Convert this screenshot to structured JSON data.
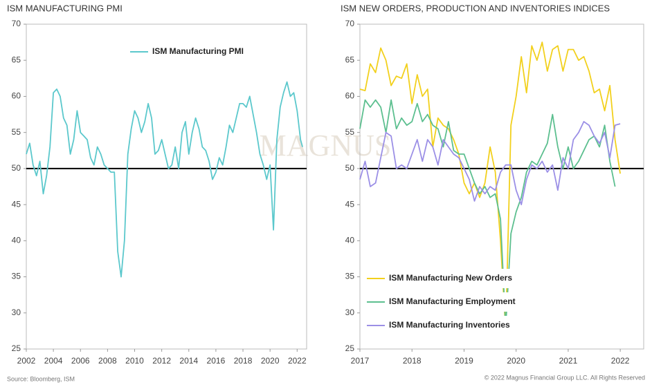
{
  "chart_data": [
    {
      "type": "line",
      "title": "ISM MANUFACTURING PMI",
      "legend": "top",
      "x": [
        2002.0,
        2002.25,
        2002.5,
        2002.75,
        2003.0,
        2003.25,
        2003.5,
        2003.75,
        2004.0,
        2004.25,
        2004.5,
        2004.75,
        2005.0,
        2005.25,
        2005.5,
        2005.75,
        2006.0,
        2006.25,
        2006.5,
        2006.75,
        2007.0,
        2007.25,
        2007.5,
        2007.75,
        2008.0,
        2008.25,
        2008.5,
        2008.75,
        2009.0,
        2009.25,
        2009.5,
        2009.75,
        2010.0,
        2010.25,
        2010.5,
        2010.75,
        2011.0,
        2011.25,
        2011.5,
        2011.75,
        2012.0,
        2012.25,
        2012.5,
        2012.75,
        2013.0,
        2013.25,
        2013.5,
        2013.75,
        2014.0,
        2014.25,
        2014.5,
        2014.75,
        2015.0,
        2015.25,
        2015.5,
        2015.75,
        2016.0,
        2016.25,
        2016.5,
        2016.75,
        2017.0,
        2017.25,
        2017.5,
        2017.75,
        2018.0,
        2018.25,
        2018.5,
        2018.75,
        2019.0,
        2019.25,
        2019.5,
        2019.75,
        2020.0,
        2020.25,
        2020.5,
        2020.75,
        2021.0,
        2021.25,
        2021.5,
        2021.75,
        2022.0,
        2022.25,
        2022.4
      ],
      "series": [
        {
          "name": "ISM Manufacturing PMI",
          "color": "#5bc8cc",
          "values": [
            52,
            53.5,
            50.5,
            49,
            51,
            46.5,
            49,
            53,
            60.5,
            61,
            60,
            57,
            56,
            52,
            54,
            58,
            55,
            54.5,
            54,
            51.5,
            50.5,
            53,
            52,
            50.5,
            50,
            49.5,
            49.5,
            38.5,
            35,
            40,
            52,
            55.5,
            58,
            57,
            55,
            56.5,
            59,
            57,
            52,
            52.5,
            54,
            52,
            50,
            50.5,
            53,
            50,
            55,
            56.5,
            52,
            55,
            57,
            55.5,
            53,
            52.5,
            51,
            48.5,
            49.5,
            51.5,
            50.5,
            53,
            56,
            55,
            57,
            59,
            59,
            58.5,
            60,
            57.5,
            55,
            52,
            50.5,
            48.5,
            50.5,
            41.5,
            54,
            58.5,
            60.5,
            62,
            60,
            60.5,
            58,
            54,
            53
          ]
        }
      ],
      "xlim": [
        2002,
        2022.7
      ],
      "ylim": [
        25,
        70
      ],
      "xticks": [
        2002,
        2004,
        2006,
        2008,
        2010,
        2012,
        2014,
        2016,
        2018,
        2020,
        2022
      ],
      "yticks": [
        25,
        30,
        35,
        40,
        45,
        50,
        55,
        60,
        65,
        70
      ],
      "ref_line": 50
    },
    {
      "type": "line",
      "title": "ISM NEW ORDERS, PRODUCTION AND INVENTORIES INDICES",
      "legend": "lower-left",
      "x": [
        2017.0,
        2017.1,
        2017.2,
        2017.3,
        2017.4,
        2017.5,
        2017.6,
        2017.7,
        2017.8,
        2017.9,
        2018.0,
        2018.1,
        2018.2,
        2018.3,
        2018.4,
        2018.5,
        2018.6,
        2018.7,
        2018.8,
        2018.9,
        2019.0,
        2019.1,
        2019.2,
        2019.3,
        2019.4,
        2019.5,
        2019.6,
        2019.7,
        2019.8,
        2019.9,
        2020.0,
        2020.1,
        2020.2,
        2020.3,
        2020.4,
        2020.5,
        2020.6,
        2020.7,
        2020.8,
        2020.9,
        2021.0,
        2021.1,
        2021.2,
        2021.3,
        2021.4,
        2021.5,
        2021.6,
        2021.7,
        2021.8,
        2021.9,
        2022.0
      ],
      "series": [
        {
          "name": "ISM Manufacturing New Orders",
          "color": "#f2d01c",
          "values": [
            61,
            60.8,
            64.5,
            63.3,
            66.7,
            65,
            61.5,
            62.8,
            62.5,
            64.5,
            59,
            63,
            60,
            61,
            53,
            57,
            56,
            55.5,
            54,
            52,
            48,
            46.5,
            48,
            46,
            48,
            53,
            49.5,
            40,
            27.5,
            56,
            60,
            65.5,
            60.5,
            67,
            65,
            67.5,
            63.5,
            66.5,
            67,
            63.5,
            66.5,
            66.5,
            65,
            65.5,
            63.5,
            60.5,
            61,
            58,
            61.5,
            54,
            49.3
          ]
        },
        {
          "name": "ISM Manufacturing Employment",
          "color": "#5cbf8f",
          "values": [
            55.5,
            59.5,
            58.5,
            59.5,
            58.5,
            55,
            59.5,
            55.5,
            57,
            56,
            56.5,
            59,
            56.5,
            57.5,
            56,
            55.5,
            53,
            56.5,
            52.5,
            52,
            52,
            50,
            48,
            46.5,
            47.5,
            46,
            46.5,
            43,
            28,
            41,
            44,
            46,
            49.5,
            51,
            50.5,
            52,
            53.5,
            57.5,
            53,
            50,
            53,
            50,
            51,
            52.5,
            54,
            54.5,
            53,
            56,
            51,
            47.5,
            null
          ]
        },
        {
          "name": "ISM Manufacturing Inventories",
          "color": "#9b8fe6",
          "values": [
            48.5,
            51,
            47.5,
            48,
            51.5,
            55,
            54.5,
            50,
            50.5,
            50,
            52,
            54,
            51,
            54,
            53,
            50.5,
            54,
            53,
            52,
            51.5,
            50,
            48.5,
            45.5,
            47.5,
            46.5,
            47.5,
            47,
            49.5,
            50.5,
            50.5,
            47,
            45,
            48.5,
            50.5,
            50,
            51,
            49.5,
            50.5,
            47,
            51.5,
            50,
            54,
            55,
            56.5,
            56,
            54.5,
            53.5,
            55,
            51.5,
            56,
            56.2
          ]
        }
      ],
      "xlim": [
        2017,
        2022.45
      ],
      "ylim": [
        25,
        70
      ],
      "xticks": [
        2017,
        2018,
        2019,
        2020,
        2021,
        2022
      ],
      "yticks": [
        25,
        30,
        35,
        40,
        45,
        50,
        55,
        60,
        65,
        70
      ],
      "ref_line": 50
    }
  ],
  "source": "Source: Bloomberg, ISM",
  "copyright": "© 2022 Magnus Financial Group LLC. All Rights Reserved",
  "watermark": "MAGNUS"
}
